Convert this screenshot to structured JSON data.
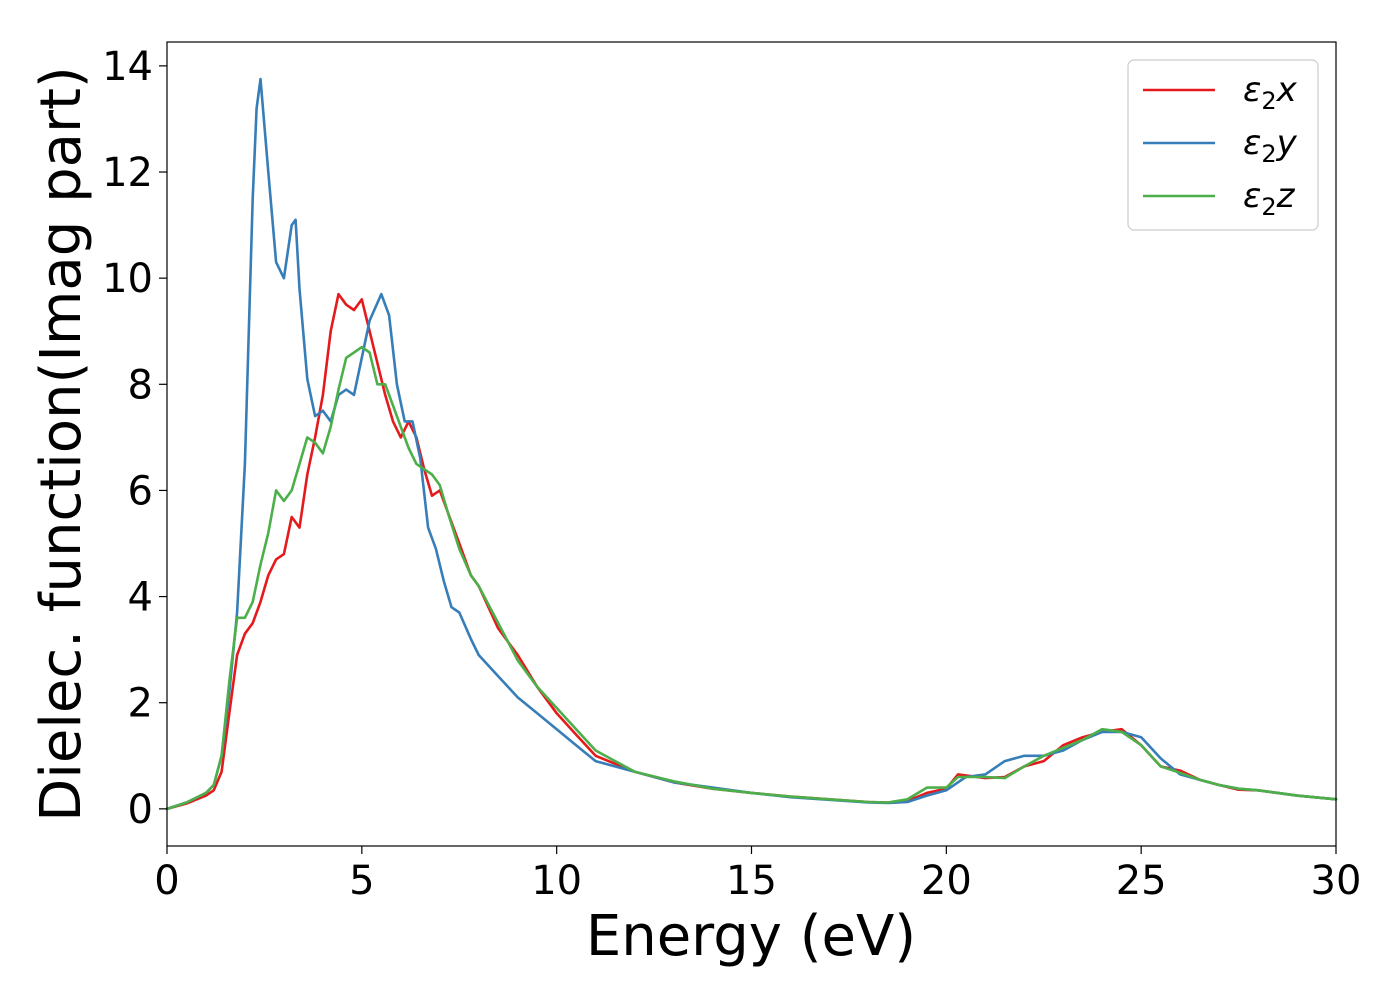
{
  "chart_data": {
    "type": "line",
    "title": "",
    "xlabel": "Energy (eV)",
    "ylabel": "Dielec. function(Imag part)",
    "xlim": [
      0,
      30
    ],
    "ylim": [
      -0.7,
      14.45
    ],
    "xticks": [
      0,
      5,
      10,
      15,
      20,
      25,
      30
    ],
    "yticks": [
      0,
      2,
      4,
      6,
      8,
      10,
      12,
      14
    ],
    "grid": false,
    "legend_position": "top-right",
    "series": [
      {
        "name": "x",
        "color": "#e41a1c",
        "x": [
          0,
          0.5,
          1,
          1.2,
          1.4,
          1.6,
          1.8,
          2.0,
          2.2,
          2.4,
          2.6,
          2.8,
          3.0,
          3.2,
          3.4,
          3.6,
          3.8,
          4.0,
          4.2,
          4.4,
          4.6,
          4.8,
          5.0,
          5.2,
          5.4,
          5.6,
          5.8,
          6.0,
          6.2,
          6.4,
          6.6,
          6.8,
          7.0,
          7.2,
          7.5,
          7.8,
          8.0,
          8.5,
          9.0,
          9.5,
          10,
          10.5,
          11,
          12,
          13,
          14,
          15,
          16,
          17,
          18,
          18.5,
          19,
          19.5,
          20,
          20.3,
          21,
          21.5,
          22,
          22.5,
          23,
          23.5,
          24,
          24.5,
          25,
          25.5,
          26,
          26.5,
          27,
          27.5,
          28,
          28.5,
          29,
          30
        ],
        "y": [
          0,
          0.1,
          0.25,
          0.35,
          0.7,
          1.8,
          2.9,
          3.3,
          3.5,
          3.9,
          4.4,
          4.7,
          4.8,
          5.5,
          5.3,
          6.3,
          7.0,
          7.8,
          9.0,
          9.7,
          9.5,
          9.4,
          9.6,
          9.0,
          8.4,
          7.8,
          7.3,
          7.0,
          7.3,
          7.0,
          6.4,
          5.9,
          6.0,
          5.6,
          5.0,
          4.4,
          4.2,
          3.4,
          2.9,
          2.3,
          1.8,
          1.4,
          1.0,
          0.7,
          0.5,
          0.38,
          0.3,
          0.23,
          0.18,
          0.13,
          0.12,
          0.15,
          0.3,
          0.38,
          0.65,
          0.58,
          0.6,
          0.8,
          0.9,
          1.2,
          1.35,
          1.45,
          1.5,
          1.2,
          0.8,
          0.72,
          0.55,
          0.45,
          0.36,
          0.35,
          0.3,
          0.25,
          0.18
        ]
      },
      {
        "name": "y",
        "color": "#377eb8",
        "x": [
          0,
          0.5,
          1,
          1.2,
          1.4,
          1.6,
          1.8,
          2.0,
          2.2,
          2.3,
          2.4,
          2.6,
          2.8,
          3.0,
          3.2,
          3.3,
          3.4,
          3.6,
          3.8,
          4.0,
          4.2,
          4.4,
          4.6,
          4.8,
          5.0,
          5.2,
          5.5,
          5.7,
          5.9,
          6.1,
          6.3,
          6.5,
          6.7,
          6.9,
          7.1,
          7.3,
          7.5,
          7.8,
          8.0,
          8.5,
          9.0,
          9.5,
          10,
          10.5,
          11,
          12,
          13,
          14,
          15,
          16,
          17,
          18,
          18.5,
          19,
          19.5,
          20,
          20.5,
          21,
          21.5,
          22,
          22.5,
          23,
          23.5,
          24,
          24.5,
          25,
          25.5,
          26,
          26.5,
          27,
          27.5,
          28,
          28.5,
          29,
          30
        ],
        "y": [
          0,
          0.12,
          0.3,
          0.45,
          1.0,
          2.2,
          3.7,
          6.5,
          11.5,
          13.2,
          13.75,
          12.0,
          10.3,
          10.0,
          11.0,
          11.1,
          9.8,
          8.1,
          7.4,
          7.5,
          7.3,
          7.8,
          7.9,
          7.8,
          8.5,
          9.2,
          9.7,
          9.3,
          8.0,
          7.3,
          7.3,
          6.6,
          5.3,
          4.9,
          4.3,
          3.8,
          3.7,
          3.2,
          2.9,
          2.5,
          2.1,
          1.8,
          1.5,
          1.2,
          0.9,
          0.7,
          0.5,
          0.4,
          0.3,
          0.22,
          0.17,
          0.12,
          0.11,
          0.13,
          0.25,
          0.35,
          0.6,
          0.65,
          0.9,
          1.0,
          1.0,
          1.1,
          1.3,
          1.45,
          1.45,
          1.35,
          0.95,
          0.65,
          0.55,
          0.45,
          0.38,
          0.35,
          0.3,
          0.25,
          0.18
        ]
      },
      {
        "name": "z",
        "color": "#4daf4a",
        "x": [
          0,
          0.5,
          1,
          1.2,
          1.4,
          1.6,
          1.8,
          2.0,
          2.2,
          2.4,
          2.6,
          2.8,
          3.0,
          3.2,
          3.4,
          3.6,
          3.8,
          4.0,
          4.2,
          4.4,
          4.6,
          4.8,
          5.0,
          5.2,
          5.4,
          5.6,
          5.8,
          6.0,
          6.2,
          6.4,
          6.6,
          6.8,
          7.0,
          7.2,
          7.5,
          7.8,
          8.0,
          8.5,
          9.0,
          9.5,
          10,
          10.5,
          11,
          12,
          13,
          14,
          15,
          16,
          17,
          18,
          18.5,
          19,
          19.5,
          20,
          20.3,
          21,
          21.5,
          22,
          22.5,
          23,
          23.5,
          24,
          24.5,
          25,
          25.5,
          26,
          26.5,
          27,
          27.5,
          28,
          28.5,
          29,
          30
        ],
        "y": [
          0,
          0.12,
          0.3,
          0.45,
          1.0,
          2.4,
          3.6,
          3.6,
          3.9,
          4.6,
          5.2,
          6.0,
          5.8,
          6.0,
          6.5,
          7.0,
          6.9,
          6.7,
          7.2,
          7.9,
          8.5,
          8.6,
          8.7,
          8.6,
          8.0,
          8.0,
          7.6,
          7.2,
          6.8,
          6.5,
          6.4,
          6.3,
          6.1,
          5.6,
          4.9,
          4.4,
          4.2,
          3.5,
          2.8,
          2.3,
          1.9,
          1.5,
          1.1,
          0.7,
          0.52,
          0.38,
          0.3,
          0.23,
          0.18,
          0.13,
          0.12,
          0.18,
          0.4,
          0.4,
          0.6,
          0.6,
          0.58,
          0.8,
          1.0,
          1.15,
          1.3,
          1.5,
          1.45,
          1.2,
          0.8,
          0.68,
          0.55,
          0.45,
          0.38,
          0.35,
          0.3,
          0.25,
          0.18
        ]
      }
    ],
    "legend": [
      {
        "symbol": "ε",
        "sub": "2",
        "var": "x"
      },
      {
        "symbol": "ε",
        "sub": "2",
        "var": "y"
      },
      {
        "symbol": "ε",
        "sub": "2",
        "var": "z"
      }
    ]
  }
}
